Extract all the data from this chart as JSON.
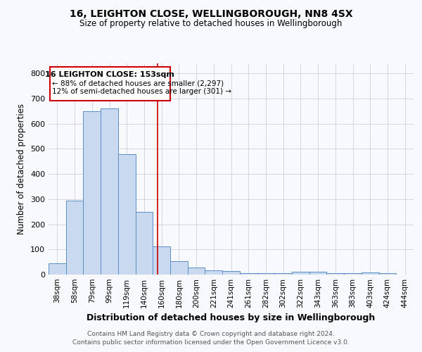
{
  "title1": "16, LEIGHTON CLOSE, WELLINGBOROUGH, NN8 4SX",
  "title2": "Size of property relative to detached houses in Wellingborough",
  "xlabel": "Distribution of detached houses by size in Wellingborough",
  "ylabel": "Number of detached properties",
  "categories": [
    "38sqm",
    "58sqm",
    "79sqm",
    "99sqm",
    "119sqm",
    "140sqm",
    "160sqm",
    "180sqm",
    "200sqm",
    "221sqm",
    "241sqm",
    "261sqm",
    "282sqm",
    "302sqm",
    "322sqm",
    "343sqm",
    "363sqm",
    "383sqm",
    "403sqm",
    "424sqm",
    "444sqm"
  ],
  "values": [
    45,
    293,
    650,
    660,
    480,
    250,
    113,
    52,
    27,
    17,
    15,
    7,
    7,
    7,
    10,
    10,
    5,
    5,
    8,
    5,
    0
  ],
  "bar_color": "#c9d9f0",
  "bar_edge_color": "#5b8ec4",
  "red_line_x": 5.77,
  "annotation_title": "16 LEIGHTON CLOSE: 153sqm",
  "annotation_line1": "← 88% of detached houses are smaller (2,297)",
  "annotation_line2": "12% of semi-detached houses are larger (301) →",
  "annotation_box_color": "#ffffff",
  "annotation_box_edge": "#cc0000",
  "red_line_color": "#cc0000",
  "background_color": "#f8f8ff",
  "grid_color": "#c8c8d8",
  "ylim": [
    0,
    840
  ],
  "yticks": [
    0,
    100,
    200,
    300,
    400,
    500,
    600,
    700,
    800
  ],
  "footer1": "Contains HM Land Registry data © Crown copyright and database right 2024.",
  "footer2": "Contains public sector information licensed under the Open Government Licence v3.0."
}
